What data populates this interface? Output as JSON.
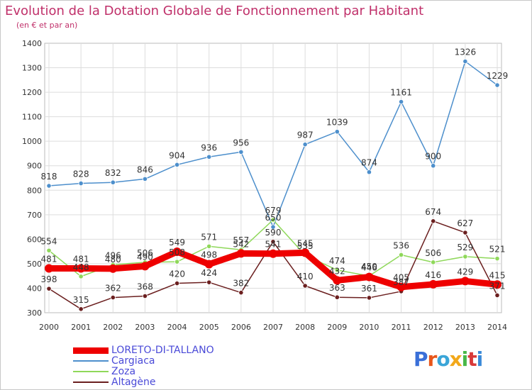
{
  "header": {
    "title": "Evolution de la Dotation Globale de Fonctionnement par Habitant",
    "subtitle": "(en € et par an)"
  },
  "logo": {
    "text": "Proxiti",
    "colors": [
      "#3a6fd8",
      "#e8561a",
      "#3aa5d8",
      "#f2a81a",
      "#48b848",
      "#d83a3a",
      "#3a8ad8"
    ]
  },
  "chart_data": {
    "type": "line",
    "x": [
      2000,
      2001,
      2002,
      2003,
      2004,
      2005,
      2006,
      2007,
      2008,
      2009,
      2010,
      2011,
      2012,
      2013,
      2014
    ],
    "ylim": [
      300,
      1400
    ],
    "yticks": [
      300,
      400,
      500,
      600,
      700,
      800,
      900,
      1000,
      1100,
      1200,
      1300,
      1400
    ],
    "grid": true,
    "legend_position": "bottom-left",
    "series": [
      {
        "name": "Cargiaca",
        "color": "#4d8fcc",
        "values": [
          818,
          828,
          832,
          846,
          904,
          936,
          956,
          650,
          987,
          1039,
          874,
          1161,
          900,
          1326,
          1229
        ]
      },
      {
        "name": "Zoza",
        "color": "#8fd85a",
        "values": [
          554,
          448,
          496,
          506,
          508,
          571,
          557,
          679,
          535,
          474,
          450,
          536,
          506,
          529,
          521
        ]
      },
      {
        "name": "Altagène",
        "color": "#6b1f1f",
        "values": [
          398,
          315,
          362,
          368,
          420,
          424,
          382,
          590,
          410,
          363,
          361,
          387,
          674,
          627,
          371
        ]
      },
      {
        "name": "LORETO-DI-TALLANO",
        "color": "#ee0000",
        "values": [
          481,
          481,
          480,
          490,
          549,
          498,
          542,
          541,
          545,
          432,
          446,
          405,
          416,
          429,
          415
        ]
      }
    ],
    "legend_order": [
      "LORETO-DI-TALLANO",
      "Cargiaca",
      "Zoza",
      "Altagène"
    ]
  }
}
